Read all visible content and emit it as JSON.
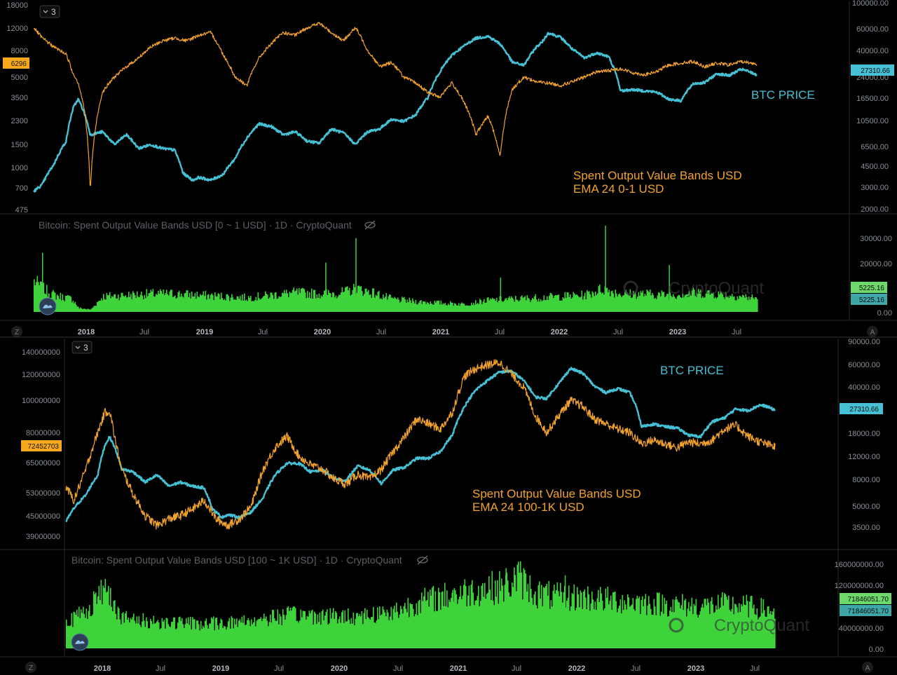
{
  "colors": {
    "btc": "#45c0d4",
    "orange": "#f2a22d",
    "green": "#3ed33a",
    "grid": "#1a1a1a",
    "axis_text": "#8a8f99",
    "sep": "#2a2a2a"
  },
  "panels": [
    {
      "collapse_label": "3",
      "price_label": "BTC PRICE",
      "metric_label_line1": "Spent Output Value Bands USD",
      "metric_label_line2": "EMA 24 0-1 USD",
      "indicator_title": "Bitcoin: Spent Output Value Bands USD [0 ~ 1 USD] · 1D · CryptoQuant",
      "left_ticks": [
        "18000",
        "12000",
        "8000",
        "5000",
        "3500",
        "2300",
        "1500",
        "1000",
        "700",
        "475"
      ],
      "left_current": "6296",
      "right_ticks": [
        "100000.00",
        "60000.00",
        "40000.00",
        "24000.00",
        "16500.00",
        "10500.00",
        "6500.00",
        "4500.00",
        "3000.00",
        "2000.00"
      ],
      "right_current": "27310.66",
      "volume_ticks": [
        "30000.00",
        "20000.00",
        "10000.00",
        "0.00"
      ],
      "volume_current_a": "5225.16",
      "volume_current_b": "5225.16",
      "watermark": "CryptoQuant",
      "x_ticks": [
        "2018",
        "Jul",
        "2019",
        "Jul",
        "2020",
        "Jul",
        "2021",
        "Jul",
        "2022",
        "Jul",
        "2023",
        "Jul"
      ],
      "corner_left": "Z",
      "corner_right": "A"
    },
    {
      "collapse_label": "3",
      "price_label": "BTC PRICE",
      "metric_label_line1": "Spent Output Value Bands USD",
      "metric_label_line2": "EMA 24 100-1K USD",
      "indicator_title": "Bitcoin: Spent Output Value Bands USD [100 ~ 1K USD] · 1D · CryptoQuant",
      "left_ticks": [
        "140000000",
        "120000000",
        "100000000",
        "80000000",
        "65000000",
        "53000000",
        "45000000",
        "39000000"
      ],
      "left_current": "72452703",
      "right_ticks": [
        "90000.00",
        "60000.00",
        "40000.00",
        "18000.00",
        "12000.00",
        "8000.00",
        "5000.00",
        "3500.00"
      ],
      "right_current": "27310.66",
      "volume_ticks": [
        "160000000.00",
        "120000000.00",
        "40000000.00",
        "0.00"
      ],
      "volume_current_a": "71846051.70",
      "volume_current_b": "71846051.70",
      "watermark": "CryptoQuant",
      "x_ticks": [
        "2018",
        "Jul",
        "2019",
        "Jul",
        "2020",
        "Jul",
        "2021",
        "Jul",
        "2022",
        "Jul",
        "2023",
        "Jul"
      ],
      "corner_left": "Z",
      "corner_right": "A"
    }
  ],
  "chart_data": [
    {
      "type": "line",
      "title": "",
      "x_unit": "year",
      "log_scale": true,
      "grid": false,
      "series": [
        {
          "name": "BTC PRICE",
          "axis": "right",
          "x": [
            2017.63,
            2017.7,
            2017.8,
            2017.9,
            2017.96,
            2018.0,
            2018.05,
            2018.1,
            2018.2,
            2018.3,
            2018.4,
            2018.5,
            2018.6,
            2018.7,
            2018.8,
            2018.87,
            2018.95,
            2019.0,
            2019.1,
            2019.2,
            2019.3,
            2019.4,
            2019.5,
            2019.6,
            2019.7,
            2019.8,
            2019.9,
            2020.0,
            2020.1,
            2020.2,
            2020.3,
            2020.4,
            2020.5,
            2020.6,
            2020.7,
            2020.8,
            2020.9,
            2021.0,
            2021.1,
            2021.2,
            2021.3,
            2021.4,
            2021.5,
            2021.6,
            2021.7,
            2021.8,
            2021.85,
            2021.9,
            2022.0,
            2022.1,
            2022.2,
            2022.3,
            2022.4,
            2022.45,
            2022.5,
            2022.6,
            2022.7,
            2022.8,
            2022.9,
            2023.0,
            2023.1,
            2023.2,
            2023.3,
            2023.4,
            2023.5,
            2023.55,
            2023.63
          ],
          "y": [
            2800,
            3200,
            4800,
            7500,
            14500,
            17000,
            13000,
            8500,
            9000,
            7000,
            8500,
            6500,
            7000,
            6500,
            6300,
            4000,
            3500,
            3700,
            3500,
            3900,
            5300,
            8000,
            10500,
            10000,
            8500,
            9000,
            7500,
            7200,
            9500,
            8800,
            7000,
            9000,
            9500,
            11500,
            11000,
            12500,
            17500,
            29000,
            40000,
            48000,
            56000,
            58000,
            50000,
            35000,
            33000,
            47000,
            52000,
            62000,
            57000,
            45000,
            38000,
            42000,
            39000,
            30000,
            20000,
            20500,
            20000,
            19500,
            17000,
            16500,
            23000,
            23500,
            28000,
            27000,
            30500,
            29500,
            27310
          ]
        },
        {
          "name": "Spent Output Value Bands USD EMA 24 0-1 USD",
          "axis": "left",
          "x": [
            2017.63,
            2017.7,
            2017.8,
            2017.9,
            2017.95,
            2018.0,
            2018.05,
            2018.1,
            2018.2,
            2018.3,
            2018.4,
            2018.5,
            2018.6,
            2018.7,
            2018.8,
            2018.9,
            2019.0,
            2019.1,
            2019.2,
            2019.3,
            2019.4,
            2019.5,
            2019.6,
            2019.7,
            2019.8,
            2019.9,
            2020.0,
            2020.1,
            2020.2,
            2020.3,
            2020.4,
            2020.5,
            2020.6,
            2020.7,
            2020.8,
            2020.9,
            2021.0,
            2021.1,
            2021.2,
            2021.3,
            2021.4,
            2021.5,
            2021.6,
            2021.7,
            2021.8,
            2021.9,
            2022.0,
            2022.1,
            2022.2,
            2022.3,
            2022.4,
            2022.5,
            2022.6,
            2022.7,
            2022.8,
            2022.9,
            2023.0,
            2023.1,
            2023.2,
            2023.3,
            2023.4,
            2023.5,
            2023.63
          ],
          "y": [
            12000,
            10000,
            8500,
            7500,
            5500,
            4500,
            2800,
            650,
            3800,
            5000,
            6000,
            7000,
            8500,
            9500,
            10000,
            9500,
            10500,
            11000,
            7500,
            5000,
            4300,
            7000,
            9000,
            11000,
            10500,
            12000,
            13000,
            11000,
            9500,
            12000,
            8000,
            6000,
            6500,
            5000,
            4500,
            3800,
            3500,
            4500,
            3200,
            1800,
            2500,
            1200,
            4000,
            5000,
            4600,
            4500,
            4300,
            4600,
            5000,
            5500,
            5600,
            5800,
            5400,
            5200,
            5500,
            6200,
            6400,
            6600,
            6000,
            6400,
            6200,
            6600,
            6296
          ]
        }
      ],
      "left_axis_ticks": [
        18000,
        12000,
        8000,
        5000,
        3500,
        2300,
        1500,
        1000,
        700,
        475
      ],
      "right_axis_ticks": [
        100000,
        60000,
        40000,
        24000,
        16500,
        10500,
        6500,
        4500,
        3000,
        2000
      ],
      "x_ticks": [
        "2018",
        "Jul",
        "2019",
        "Jul",
        "2020",
        "Jul",
        "2021",
        "Jul",
        "2022",
        "Jul",
        "2023",
        "Jul"
      ],
      "volume": {
        "type": "bar",
        "name": "Bitcoin: Spent Output Value Bands USD [0 ~ 1 USD] · 1D · CryptoQuant",
        "ylim": [
          0,
          35000
        ],
        "x": [
          2017.63,
          2017.7,
          2017.8,
          2017.95,
          2018.0,
          2018.1,
          2018.2,
          2018.4,
          2018.6,
          2018.8,
          2019.0,
          2019.2,
          2019.4,
          2019.6,
          2019.8,
          2020.0,
          2020.2,
          2020.3,
          2020.4,
          2020.6,
          2020.8,
          2021.0,
          2021.2,
          2021.4,
          2021.6,
          2021.8,
          2022.0,
          2022.2,
          2022.35,
          2022.5,
          2022.7,
          2022.9,
          2023.1,
          2023.3,
          2023.5,
          2023.63
        ],
        "y": [
          12000,
          9000,
          6500,
          5000,
          1500,
          900,
          6000,
          6500,
          7000,
          7000,
          6500,
          6000,
          5500,
          6500,
          7500,
          7000,
          7500,
          9000,
          8000,
          5000,
          4000,
          3500,
          3000,
          4500,
          5000,
          5500,
          6000,
          6500,
          9000,
          7000,
          7000,
          6500,
          7500,
          7000,
          6000,
          5225.16
        ],
        "spikes": [
          [
            2017.7,
            24000
          ],
          [
            2020.3,
            30000
          ],
          [
            2020.05,
            20000
          ],
          [
            2022.37,
            35000
          ],
          [
            2022.9,
            19000
          ],
          [
            2021.5,
            14000
          ]
        ]
      }
    },
    {
      "type": "line",
      "title": "",
      "x_unit": "year",
      "log_scale": true,
      "grid": false,
      "series": [
        {
          "name": "BTC PRICE",
          "axis": "right",
          "x": [
            2017.63,
            2017.7,
            2017.8,
            2017.9,
            2017.96,
            2018.0,
            2018.05,
            2018.1,
            2018.2,
            2018.3,
            2018.4,
            2018.5,
            2018.6,
            2018.7,
            2018.8,
            2018.87,
            2018.95,
            2019.0,
            2019.1,
            2019.2,
            2019.3,
            2019.4,
            2019.5,
            2019.6,
            2019.7,
            2019.8,
            2019.9,
            2020.0,
            2020.1,
            2020.2,
            2020.3,
            2020.4,
            2020.5,
            2020.6,
            2020.7,
            2020.8,
            2020.9,
            2021.0,
            2021.1,
            2021.2,
            2021.3,
            2021.4,
            2021.5,
            2021.6,
            2021.7,
            2021.8,
            2021.85,
            2021.9,
            2022.0,
            2022.1,
            2022.2,
            2022.3,
            2022.4,
            2022.45,
            2022.5,
            2022.6,
            2022.7,
            2022.8,
            2022.9,
            2023.0,
            2023.1,
            2023.2,
            2023.3,
            2023.4,
            2023.5,
            2023.55,
            2023.63
          ],
          "y": [
            3300,
            4300,
            5500,
            8000,
            14000,
            16500,
            13000,
            9000,
            8500,
            7000,
            8000,
            6500,
            7000,
            6500,
            6300,
            4200,
            3600,
            3800,
            3600,
            4000,
            5200,
            8000,
            10000,
            10000,
            8500,
            8800,
            7500,
            7200,
            9500,
            8800,
            6800,
            8800,
            9300,
            11000,
            11000,
            12500,
            17000,
            29000,
            40000,
            48000,
            56000,
            57000,
            48000,
            35000,
            34000,
            45000,
            52000,
            60000,
            55000,
            43000,
            38000,
            41000,
            38000,
            30000,
            20000,
            21000,
            20000,
            19500,
            17000,
            16500,
            22000,
            23500,
            28000,
            27000,
            30000,
            29500,
            27310
          ]
        },
        {
          "name": "Spent Output Value Bands USD EMA 24 100-1K USD",
          "axis": "left",
          "x": [
            2017.63,
            2017.7,
            2017.8,
            2017.9,
            2017.96,
            2018.0,
            2018.05,
            2018.1,
            2018.2,
            2018.3,
            2018.4,
            2018.5,
            2018.6,
            2018.7,
            2018.8,
            2018.9,
            2019.0,
            2019.1,
            2019.2,
            2019.3,
            2019.4,
            2019.5,
            2019.6,
            2019.7,
            2019.8,
            2019.9,
            2020.0,
            2020.1,
            2020.2,
            2020.3,
            2020.4,
            2020.5,
            2020.6,
            2020.7,
            2020.8,
            2020.9,
            2021.0,
            2021.1,
            2021.2,
            2021.3,
            2021.4,
            2021.5,
            2021.6,
            2021.7,
            2021.8,
            2021.85,
            2021.9,
            2022.0,
            2022.1,
            2022.2,
            2022.3,
            2022.4,
            2022.5,
            2022.6,
            2022.7,
            2022.8,
            2022.9,
            2023.0,
            2023.1,
            2023.2,
            2023.3,
            2023.4,
            2023.5,
            2023.63
          ],
          "y": [
            55000000,
            50000000,
            62000000,
            80000000,
            92000000,
            93000000,
            75000000,
            62000000,
            52000000,
            45000000,
            42000000,
            44000000,
            45000000,
            47000000,
            50000000,
            44000000,
            42000000,
            44000000,
            48000000,
            62000000,
            72000000,
            78000000,
            68000000,
            64000000,
            62000000,
            58000000,
            56000000,
            60000000,
            58000000,
            62000000,
            70000000,
            78000000,
            88000000,
            85000000,
            82000000,
            92000000,
            118000000,
            125000000,
            128000000,
            130000000,
            120000000,
            110000000,
            90000000,
            80000000,
            90000000,
            95000000,
            100000000,
            96000000,
            88000000,
            85000000,
            82000000,
            80000000,
            74000000,
            76000000,
            74000000,
            72000000,
            75000000,
            74000000,
            76000000,
            82000000,
            84000000,
            78000000,
            75000000,
            72452703
          ]
        }
      ],
      "left_axis_ticks": [
        140000000,
        120000000,
        100000000,
        80000000,
        65000000,
        53000000,
        45000000,
        39000000
      ],
      "right_axis_ticks": [
        90000,
        60000,
        40000,
        18000,
        12000,
        8000,
        5000,
        3500
      ],
      "x_ticks": [
        "2018",
        "Jul",
        "2019",
        "Jul",
        "2020",
        "Jul",
        "2021",
        "Jul",
        "2022",
        "Jul",
        "2023",
        "Jul"
      ],
      "volume": {
        "type": "bar",
        "name": "Bitcoin: Spent Output Value Bands USD [100 ~ 1K USD] · 1D · CryptoQuant",
        "ylim": [
          0,
          180000000
        ],
        "x": [
          2017.63,
          2017.7,
          2017.8,
          2017.9,
          2017.96,
          2018.0,
          2018.05,
          2018.1,
          2018.2,
          2018.4,
          2018.6,
          2018.8,
          2019.0,
          2019.2,
          2019.4,
          2019.6,
          2019.8,
          2020.0,
          2020.2,
          2020.4,
          2020.6,
          2020.8,
          2021.0,
          2021.2,
          2021.35,
          2021.45,
          2021.6,
          2021.8,
          2022.0,
          2022.2,
          2022.4,
          2022.6,
          2022.8,
          2023.0,
          2023.2,
          2023.4,
          2023.63
        ],
        "y": [
          50000000,
          60000000,
          75000000,
          100000000,
          120000000,
          110000000,
          80000000,
          60000000,
          55000000,
          52000000,
          50000000,
          48000000,
          50000000,
          55000000,
          62000000,
          66000000,
          64000000,
          62000000,
          66000000,
          72000000,
          90000000,
          100000000,
          110000000,
          118000000,
          120000000,
          140000000,
          108000000,
          100000000,
          100000000,
          95000000,
          92000000,
          88000000,
          85000000,
          82000000,
          86000000,
          82000000,
          71846051.7
        ],
        "spikes": [
          [
            2021.35,
            165000000
          ],
          [
            2021.85,
            150000000
          ],
          [
            2020.9,
            120000000
          ]
        ]
      }
    }
  ]
}
